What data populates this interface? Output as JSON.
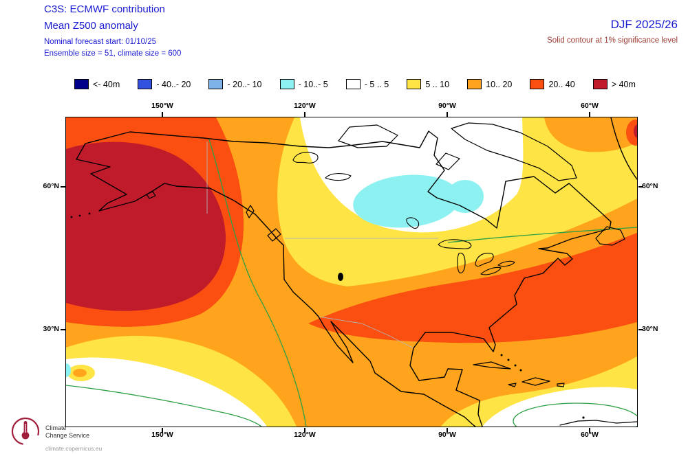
{
  "header": {
    "title": "C3S: ECMWF contribution",
    "subtitle": "Mean Z500 anomaly",
    "forecast_start": "Nominal forecast start: 01/10/25",
    "ensemble_info": "Ensemble size = 51, climate size = 600",
    "season": "DJF 2025/26",
    "significance_note": "Solid contour at 1% significance level"
  },
  "colors": {
    "heading_blue": "#1a1ad2",
    "note_red": "#9c3a33"
  },
  "legend": {
    "items": [
      {
        "label": "<- 40m",
        "color": "#00008b"
      },
      {
        "label": "- 40..- 20",
        "color": "#3352e0"
      },
      {
        "label": "- 20..- 10",
        "color": "#7db3e8"
      },
      {
        "label": "- 10..- 5",
        "color": "#8df1f1"
      },
      {
        "label": "- 5 .. 5",
        "color": "#ffffff"
      },
      {
        "label": "5 .. 10",
        "color": "#ffe445"
      },
      {
        "label": "10.. 20",
        "color": "#ffa41c"
      },
      {
        "label": "20.. 40",
        "color": "#fa4f11"
      },
      {
        "label": "> 40m",
        "color": "#bf1b2b"
      }
    ]
  },
  "map": {
    "x_ticks": [
      "150°W",
      "120°W",
      "90°W",
      "60°W"
    ],
    "y_ticks": [
      "60°N",
      "30°N"
    ],
    "colors": {
      "white_band": "#ffffff",
      "cyan": "#8df1f1",
      "yellow": "#ffe445",
      "orange": "#ffa41c",
      "red_orange": "#fa4f11",
      "dark_red": "#bf1b2b",
      "contour_green": "#2da044",
      "coast": "#000000",
      "border_gray": "#b5b5b5"
    }
  },
  "footer": {
    "logo_line1": "Climate",
    "logo_line2": "Change Service",
    "url": "climate.copernicus.eu"
  }
}
